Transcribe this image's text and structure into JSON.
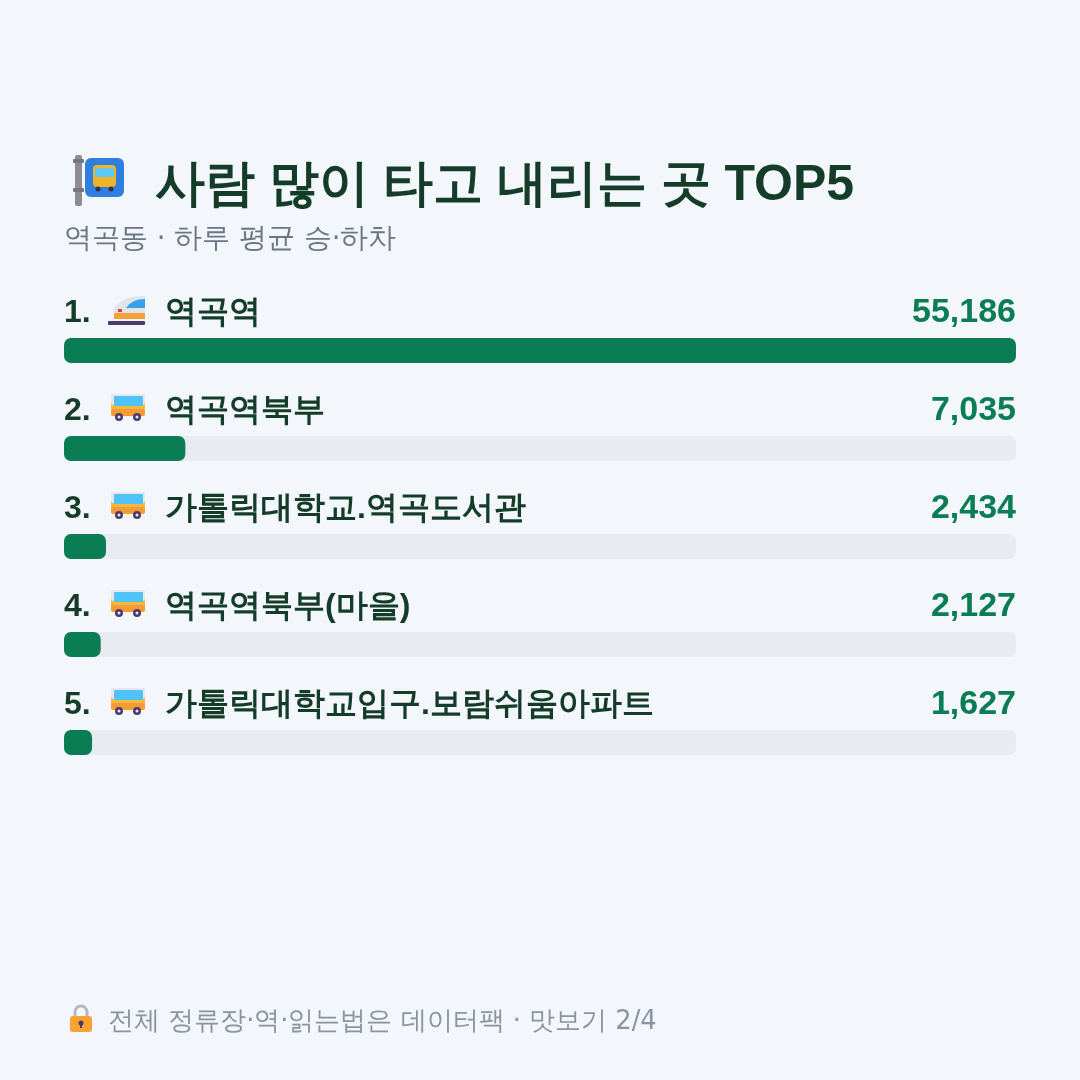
{
  "chart_data": {
    "type": "bar",
    "orientation": "horizontal",
    "title": "사람 많이 타고 내리는 곳 TOP5",
    "subtitle": "역곡동 · 하루 평균 승·하차",
    "categories": [
      "1. 역곡역",
      "2. 역곡역북부",
      "3. 가톨릭대학교.역곡도서관",
      "4. 역곡역북부(마을)",
      "5. 가톨릭대학교입구.보람쉬움아파트"
    ],
    "values": [
      55186,
      7035,
      2434,
      2127,
      1627
    ],
    "value_labels": [
      "55,186",
      "7,035",
      "2,434",
      "2,127",
      "1,627"
    ],
    "color": "#0b7d55",
    "annotations": [
      "전체 정류장·역·읽는법은 데이터팩 · 맛보기 2/4"
    ]
  }
}
